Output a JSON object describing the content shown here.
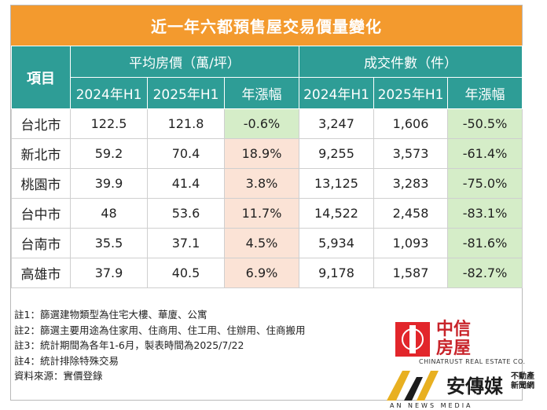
{
  "title": "近一年六都預售屋交易價量變化",
  "table": {
    "item_header": "項目",
    "group_price": "平均房價（萬/坪）",
    "group_volume": "成交件數（件）",
    "subheaders": [
      "2024年H1",
      "2025年H1",
      "年漲幅",
      "2024年H1",
      "2025年H1",
      "年漲幅"
    ],
    "rows": [
      {
        "area": "台北市",
        "p24": "122.5",
        "p25": "121.8",
        "pchg": "-0.6%",
        "v24": "3,247",
        "v25": "1,606",
        "vchg": "-50.5%"
      },
      {
        "area": "新北市",
        "p24": "59.2",
        "p25": "70.4",
        "pchg": "18.9%",
        "v24": "9,255",
        "v25": "3,573",
        "vchg": "-61.4%"
      },
      {
        "area": "桃園市",
        "p24": "39.9",
        "p25": "41.4",
        "pchg": "3.8%",
        "v24": "13,125",
        "v25": "3,283",
        "vchg": "-75.0%"
      },
      {
        "area": "台中市",
        "p24": "48",
        "p25": "53.6",
        "pchg": "11.7%",
        "v24": "14,522",
        "v25": "2,458",
        "vchg": "-83.1%"
      },
      {
        "area": "台南市",
        "p24": "35.5",
        "p25": "37.1",
        "pchg": "4.5%",
        "v24": "5,934",
        "v25": "1,093",
        "vchg": "-81.6%"
      },
      {
        "area": "高雄市",
        "p24": "37.9",
        "p25": "40.5",
        "pchg": "6.9%",
        "v24": "9,178",
        "v25": "1,587",
        "vchg": "-82.7%"
      }
    ]
  },
  "notes": [
    "註1：篩選建物類型為住宅大樓、華廈、公寓",
    "註2：篩選主要用途為住家用、住商用、住工用、住辦用、住商搬用",
    "註3：統計期間為各年1-6月，製表時間為2025/7/22",
    "註4：統計排除特殊交易",
    "資料來源：實價登錄"
  ],
  "logos": {
    "chinatrust_cn": "中信房屋",
    "chinatrust_en": "CHINATRUST REAL ESTATE CO.",
    "an_name": "安傳媒",
    "an_side": "不動產新聞網",
    "an_en": "AN NEWS MEDIA"
  },
  "colors": {
    "title_bg": "#f39a2e",
    "header_bg": "#2e9d96",
    "positive_bg": "#fbe3d6",
    "negative_bg": "#d5edc8",
    "brand_red": "#e2262b",
    "an_gold": "#e8b021"
  }
}
